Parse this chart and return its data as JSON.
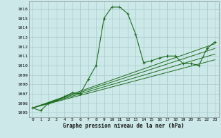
{
  "title": "Graphe pression niveau de la mer (hPa)",
  "background_color": "#cce8e8",
  "grid_color": "#aacccc",
  "line_color": "#1a6b1a",
  "xlim": [
    -0.5,
    23.5
  ],
  "ylim": [
    1004.5,
    1016.8
  ],
  "yticks": [
    1005,
    1006,
    1007,
    1008,
    1009,
    1010,
    1011,
    1012,
    1013,
    1014,
    1015,
    1016
  ],
  "xticks": [
    0,
    1,
    2,
    3,
    4,
    5,
    6,
    7,
    8,
    9,
    10,
    11,
    12,
    13,
    14,
    15,
    16,
    17,
    18,
    19,
    20,
    21,
    22,
    23
  ],
  "line1_x": [
    0,
    1,
    2,
    3,
    4,
    5,
    6,
    7,
    8,
    9,
    10,
    11,
    12,
    13,
    14,
    15,
    16,
    17,
    18,
    19,
    20,
    21,
    22,
    23
  ],
  "line1_y": [
    1005.5,
    1005.2,
    1006.0,
    1006.3,
    1006.7,
    1007.1,
    1007.0,
    1008.5,
    1010.0,
    1015.0,
    1016.2,
    1016.2,
    1015.5,
    1013.3,
    1010.3,
    1010.5,
    1010.8,
    1011.0,
    1011.0,
    1010.2,
    1010.2,
    1010.0,
    1011.8,
    1012.5
  ],
  "line2_x": [
    0,
    23
  ],
  "line2_y": [
    1005.5,
    1012.3
  ],
  "line3_x": [
    0,
    23
  ],
  "line3_y": [
    1005.5,
    1011.8
  ],
  "line4_x": [
    0,
    23
  ],
  "line4_y": [
    1005.5,
    1011.2
  ],
  "line5_x": [
    0,
    23
  ],
  "line5_y": [
    1005.5,
    1010.6
  ]
}
